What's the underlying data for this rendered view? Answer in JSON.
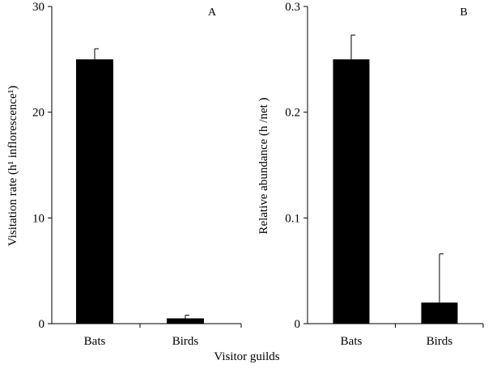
{
  "x_axis_title": "Visitor guilds",
  "chart_data": [
    {
      "type": "bar",
      "panel_label": "A",
      "categories": [
        "Bats",
        "Birds"
      ],
      "values": [
        25.0,
        0.5
      ],
      "errors": [
        1.0,
        0.3
      ],
      "ylabel": "Visitation rate (h¹ inflorescence¹)",
      "ylim": [
        0,
        30
      ],
      "yticks": [
        "0",
        "10",
        "20",
        "30"
      ],
      "ytick_values": [
        0,
        10,
        20,
        30
      ],
      "bar_color": "#000000",
      "grid": false
    },
    {
      "type": "bar",
      "panel_label": "B",
      "categories": [
        "Bats",
        "Birds"
      ],
      "values": [
        0.25,
        0.02
      ],
      "errors": [
        0.023,
        0.046
      ],
      "ylabel": "Relative abundance (h /net )",
      "ylim": [
        0,
        0.3
      ],
      "yticks": [
        "0",
        "0.1",
        "0.2",
        "0.3"
      ],
      "ytick_values": [
        0,
        0.1,
        0.2,
        0.3
      ],
      "bar_color": "#000000",
      "grid": false
    }
  ]
}
